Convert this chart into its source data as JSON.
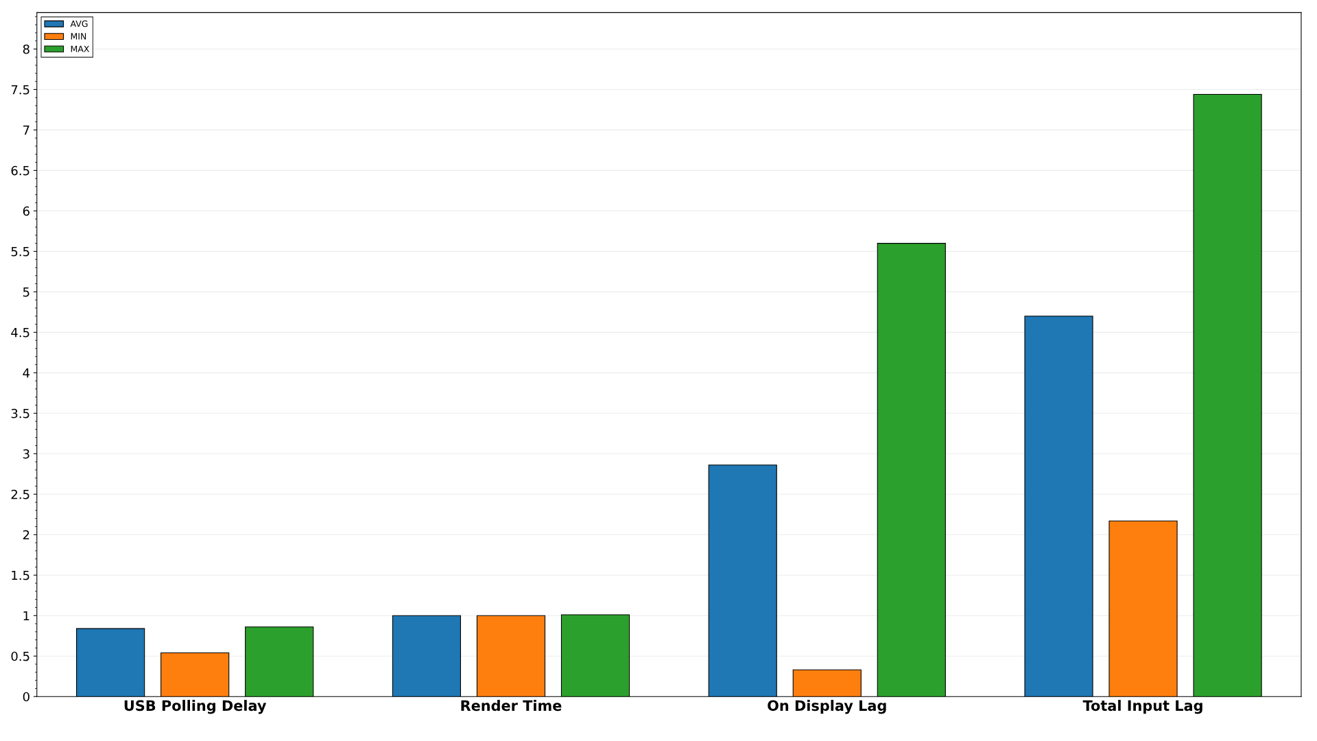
{
  "chart_data": {
    "type": "bar",
    "categories": [
      "USB Polling Delay",
      "Render Time",
      "On Display Lag",
      "Total Input Lag"
    ],
    "series": [
      {
        "name": "AVG",
        "color": "#1f77b4",
        "values": [
          0.84,
          1.0,
          2.86,
          4.7
        ]
      },
      {
        "name": "MIN",
        "color": "#ff7f0e",
        "values": [
          0.54,
          1.0,
          0.33,
          2.17
        ]
      },
      {
        "name": "MAX",
        "color": "#2ca02c",
        "values": [
          0.86,
          1.01,
          5.6,
          7.44
        ]
      }
    ],
    "ylim": [
      0,
      8.45
    ],
    "yticks": [
      0,
      0.5,
      1,
      1.5,
      2,
      2.5,
      3,
      3.5,
      4,
      4.5,
      5,
      5.5,
      6,
      6.5,
      7,
      7.5,
      8
    ],
    "grid": "y",
    "legend": "top left"
  }
}
